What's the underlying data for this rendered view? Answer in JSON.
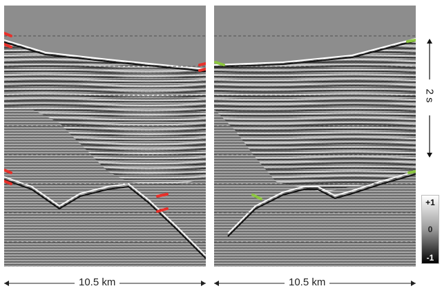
{
  "scale_bar_left": {
    "label": "10.5 km"
  },
  "scale_bar_right": {
    "label": "10.5 km"
  },
  "time_scale": {
    "label": "2 s"
  },
  "amplitude_colorbar": {
    "max_label": "+1",
    "mid_label": "0",
    "min_label": "-1"
  },
  "colors": {
    "left_markers": "#e8302a",
    "right_markers": "#8cc63f",
    "water": "#8d8d8d"
  }
}
